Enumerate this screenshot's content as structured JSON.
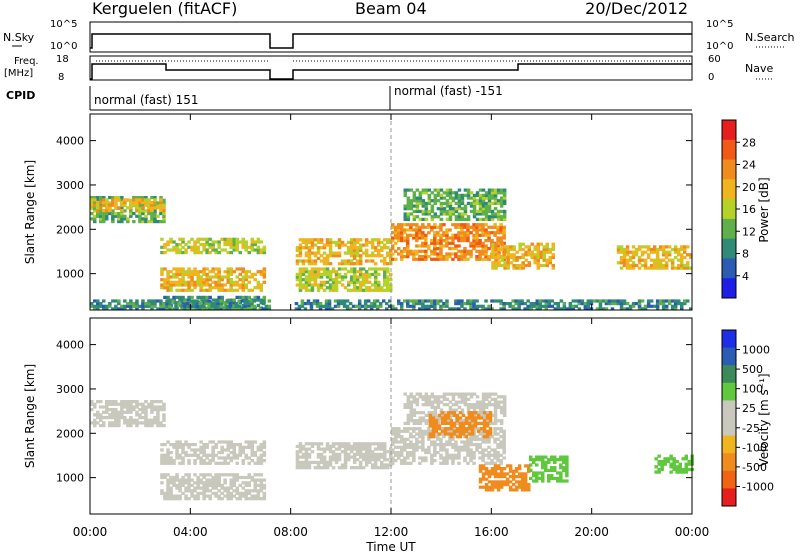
{
  "header": {
    "station": "Kerguelen (fitACF)",
    "beam": "Beam 04",
    "date": "20/Dec/2012"
  },
  "top_panels": {
    "nsky_label": "N.Sky",
    "nsearch_label": "N.Search",
    "nsky_ticks": [
      "10^5",
      "10^0"
    ],
    "nsearch_ticks": [
      "10^5",
      "10^0"
    ],
    "freq_label_1": "Freq.",
    "freq_label_2": "[MHz]",
    "freq_ticks": [
      "18",
      "8"
    ],
    "nave_label": "Nave",
    "nave_ticks": [
      "60",
      "0"
    ],
    "cpid_label": "CPID",
    "cpid_1": "normal (fast) 151",
    "cpid_2": "normal (fast) -151"
  },
  "colors": {
    "power_scale": [
      "#1e1ee6",
      "#2a5cb4",
      "#2f8a78",
      "#5fb04a",
      "#b4d228",
      "#f0b41e",
      "#f08c1e",
      "#f05a14",
      "#e61e1e"
    ],
    "velocity_scale": [
      "#e61e1e",
      "#f06414",
      "#f08c1e",
      "#f0b41e",
      "#c8c8bc",
      "#c8c8bc",
      "#5fc83c",
      "#3c8a5a",
      "#2a5cb4",
      "#1e2ee6"
    ],
    "ground_scatter": "#c8c8bc"
  },
  "chart_data": [
    {
      "type": "heatmap",
      "name": "power",
      "ylabel": "Slant Range [km]",
      "xlim": [
        0,
        24
      ],
      "ylim": [
        180,
        4600
      ],
      "yticks": [
        "1000",
        "2000",
        "3000",
        "4000"
      ],
      "colorbar_label": "Power [dB]",
      "colorbar_ticks": [
        "4",
        "8",
        "12",
        "16",
        "20",
        "24",
        "28"
      ],
      "data_gap_hours": [
        7.1,
        8.1
      ],
      "echo_bands": [
        {
          "t0": 0.0,
          "t1": 3.0,
          "r0": 2150,
          "r1": 2700,
          "level": 3
        },
        {
          "t0": 0.0,
          "t1": 3.0,
          "r0": 2400,
          "r1": 2650,
          "level": 5
        },
        {
          "t0": 2.8,
          "t1": 7.0,
          "r0": 1450,
          "r1": 1800,
          "level": 4
        },
        {
          "t0": 2.8,
          "t1": 7.0,
          "r0": 600,
          "r1": 1100,
          "level": 5
        },
        {
          "t0": 2.8,
          "t1": 7.0,
          "r0": 200,
          "r1": 450,
          "level": 2
        },
        {
          "t0": 8.2,
          "t1": 12.0,
          "r0": 1200,
          "r1": 1800,
          "level": 5
        },
        {
          "t0": 8.2,
          "t1": 12.0,
          "r0": 600,
          "r1": 1100,
          "level": 4
        },
        {
          "t0": 12.0,
          "t1": 16.5,
          "r0": 1300,
          "r1": 2100,
          "level": 6
        },
        {
          "t0": 12.5,
          "t1": 16.5,
          "r0": 2200,
          "r1": 2900,
          "level": 3
        },
        {
          "t0": 16.0,
          "t1": 18.5,
          "r0": 1100,
          "r1": 1700,
          "level": 5
        },
        {
          "t0": 21.0,
          "t1": 24.0,
          "r0": 1100,
          "r1": 1600,
          "level": 5
        },
        {
          "t0": 0.0,
          "t1": 24.0,
          "r0": 180,
          "r1": 400,
          "level": 2
        }
      ]
    },
    {
      "type": "heatmap",
      "name": "velocity",
      "ylabel": "Slant Range [km]",
      "xlabel": "Time UT",
      "xlim": [
        0,
        24
      ],
      "ylim": [
        180,
        4600
      ],
      "xticks": [
        "00:00",
        "04:00",
        "08:00",
        "12:00",
        "16:00",
        "20:00",
        "00:00"
      ],
      "yticks": [
        "1000",
        "2000",
        "3000",
        "4000"
      ],
      "colorbar_label": "Velocity [m s⁻¹]",
      "colorbar_ticks": [
        "1000",
        "500",
        "100",
        "25",
        "-25",
        "-100",
        "-500",
        "-1000"
      ],
      "data_gap_hours": [
        7.1,
        8.1
      ],
      "echo_bands": [
        {
          "t0": 0.0,
          "t1": 3.0,
          "r0": 2150,
          "r1": 2700,
          "v": 0
        },
        {
          "t0": 2.8,
          "t1": 7.0,
          "r0": 1300,
          "r1": 1800,
          "v": 0
        },
        {
          "t0": 2.8,
          "t1": 7.0,
          "r0": 500,
          "r1": 1100,
          "v": 0
        },
        {
          "t0": 8.2,
          "t1": 12.0,
          "r0": 1200,
          "r1": 1800,
          "v": 0
        },
        {
          "t0": 12.0,
          "t1": 16.5,
          "r0": 1300,
          "r1": 2100,
          "v": 0
        },
        {
          "t0": 12.5,
          "t1": 16.5,
          "r0": 2200,
          "r1": 2900,
          "v": 0
        },
        {
          "t0": 13.5,
          "t1": 16.0,
          "r0": 1900,
          "r1": 2500,
          "v": -150
        },
        {
          "t0": 15.5,
          "t1": 17.5,
          "r0": 700,
          "r1": 1300,
          "v": -300
        },
        {
          "t0": 17.5,
          "t1": 19.0,
          "r0": 900,
          "r1": 1500,
          "v": 300
        },
        {
          "t0": 22.5,
          "t1": 24.0,
          "r0": 1100,
          "r1": 1500,
          "v": 150
        }
      ]
    }
  ]
}
